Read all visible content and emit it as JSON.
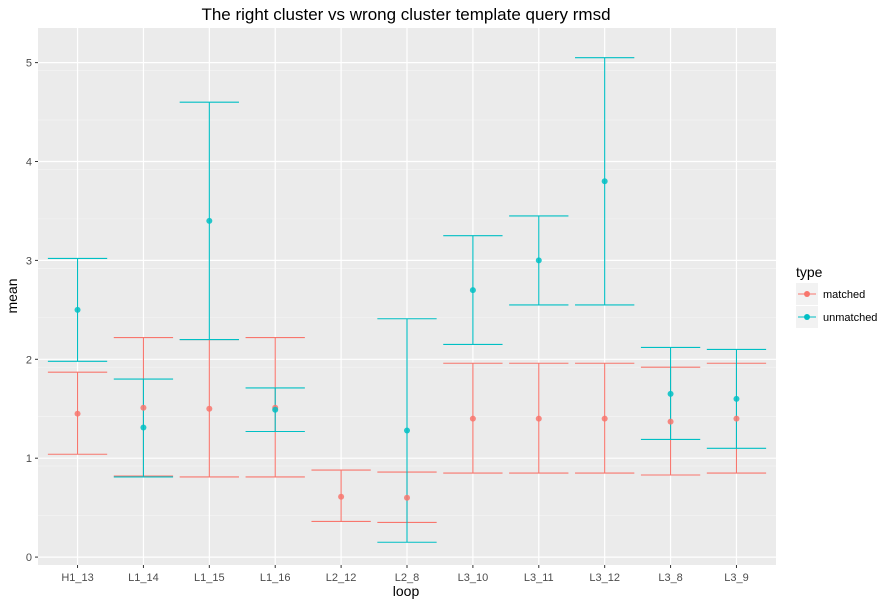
{
  "chart_data": {
    "type": "errorbar",
    "title": "The right cluster vs wrong cluster template query rmsd",
    "xlabel": "loop",
    "ylabel": "mean",
    "categories": [
      "H1_13",
      "L1_14",
      "L1_15",
      "L1_16",
      "L2_12",
      "L2_8",
      "L3_10",
      "L3_11",
      "L3_12",
      "L3_8",
      "L3_9"
    ],
    "ylim": [
      -0.08,
      5.35
    ],
    "yticks": [
      0,
      1,
      2,
      3,
      4,
      5
    ],
    "grid": true,
    "legend": {
      "title": "type",
      "position": "right"
    },
    "series": [
      {
        "name": "matched",
        "color": "#F8766D",
        "mean": [
          1.45,
          1.51,
          1.5,
          1.51,
          0.61,
          0.6,
          1.4,
          1.4,
          1.4,
          1.37,
          1.4
        ],
        "lower": [
          1.04,
          0.82,
          0.81,
          0.81,
          0.36,
          0.35,
          0.85,
          0.85,
          0.85,
          0.83,
          0.85
        ],
        "upper": [
          1.87,
          2.22,
          2.2,
          2.22,
          0.88,
          0.86,
          1.96,
          1.96,
          1.96,
          1.92,
          1.96
        ]
      },
      {
        "name": "unmatched",
        "color": "#00BFC4",
        "mean": [
          2.5,
          1.31,
          3.4,
          1.49,
          null,
          1.28,
          2.7,
          3.0,
          3.8,
          1.65,
          1.6
        ],
        "lower": [
          1.98,
          0.81,
          2.2,
          1.27,
          null,
          0.15,
          2.15,
          2.55,
          2.55,
          1.19,
          1.1
        ],
        "upper": [
          3.02,
          1.8,
          4.6,
          1.71,
          null,
          2.41,
          3.25,
          3.45,
          5.05,
          2.12,
          2.1
        ]
      }
    ]
  }
}
